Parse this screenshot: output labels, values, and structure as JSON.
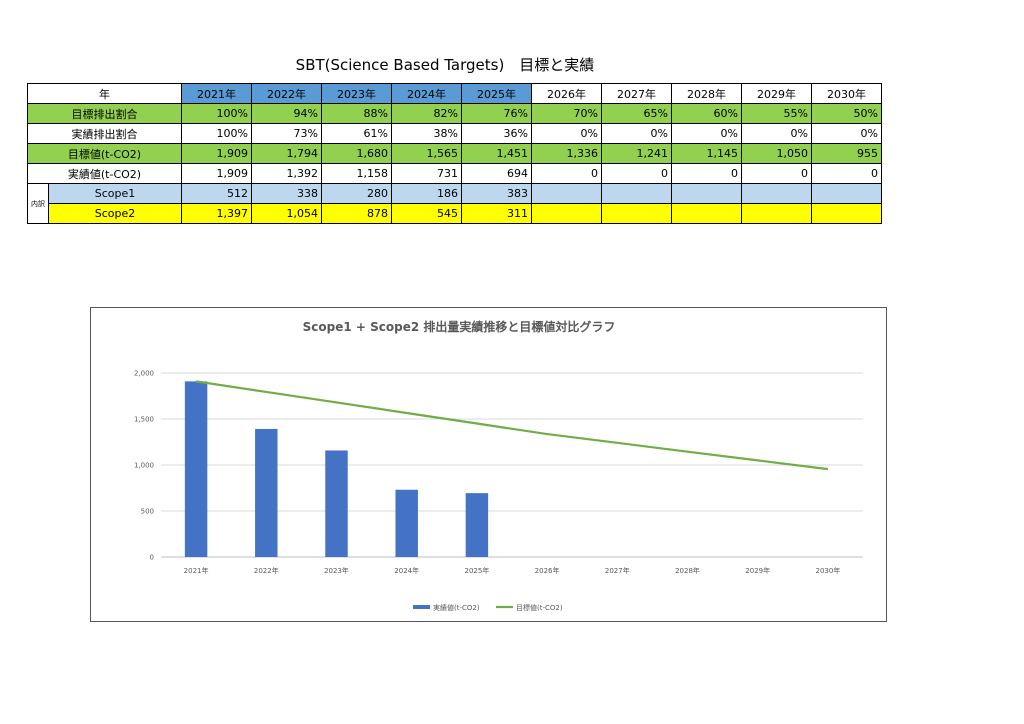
{
  "title": "SBT(Science Based Targets)　目標と実績",
  "table": {
    "header_label": "年",
    "years": [
      "2021年",
      "2022年",
      "2023年",
      "2024年",
      "2025年",
      "2026年",
      "2027年",
      "2028年",
      "2029年",
      "2030年"
    ],
    "breakdown_label": "内訳",
    "rows": [
      {
        "label": "目標排出割合",
        "values": [
          "100%",
          "94%",
          "88%",
          "82%",
          "76%",
          "70%",
          "65%",
          "60%",
          "55%",
          "50%"
        ]
      },
      {
        "label": "実績排出割合",
        "values": [
          "100%",
          "73%",
          "61%",
          "38%",
          "36%",
          "0%",
          "0%",
          "0%",
          "0%",
          "0%"
        ]
      },
      {
        "label": "目標値(t-CO2)",
        "values": [
          "1,909",
          "1,794",
          "1,680",
          "1,565",
          "1,451",
          "1,336",
          "1,241",
          "1,145",
          "1,050",
          "955"
        ]
      },
      {
        "label": "実績値(t-CO2)",
        "values": [
          "1,909",
          "1,392",
          "1,158",
          "731",
          "694",
          "0",
          "0",
          "0",
          "0",
          "0"
        ]
      },
      {
        "label": "Scope1",
        "values": [
          "512",
          "338",
          "280",
          "186",
          "383",
          "",
          "",
          "",
          "",
          ""
        ]
      },
      {
        "label": "Scope2",
        "values": [
          "1,397",
          "1,054",
          "878",
          "545",
          "311",
          "",
          "",
          "",
          "",
          ""
        ]
      }
    ]
  },
  "chart_data": {
    "type": "bar",
    "title": "Scope1 + Scope2  排出量実績推移と目標値対比グラフ",
    "categories": [
      "2021年",
      "2022年",
      "2023年",
      "2024年",
      "2025年",
      "2026年",
      "2027年",
      "2028年",
      "2029年",
      "2030年"
    ],
    "ylim": [
      0,
      2000
    ],
    "yticks": [
      0,
      500,
      1000,
      1500,
      2000
    ],
    "ytick_labels": [
      "0",
      "500",
      "1,000",
      "1,500",
      "2,000"
    ],
    "grid": true,
    "legend_position": "bottom",
    "series": [
      {
        "name": "実績値(t-CO2)",
        "type": "bar",
        "color": "#4472c4",
        "values": [
          1909,
          1392,
          1158,
          731,
          694,
          null,
          null,
          null,
          null,
          null
        ]
      },
      {
        "name": "目標値(t-CO2)",
        "type": "line",
        "color": "#70ad47",
        "values": [
          1909,
          1794,
          1680,
          1565,
          1451,
          1336,
          1241,
          1145,
          1050,
          955
        ]
      }
    ]
  }
}
